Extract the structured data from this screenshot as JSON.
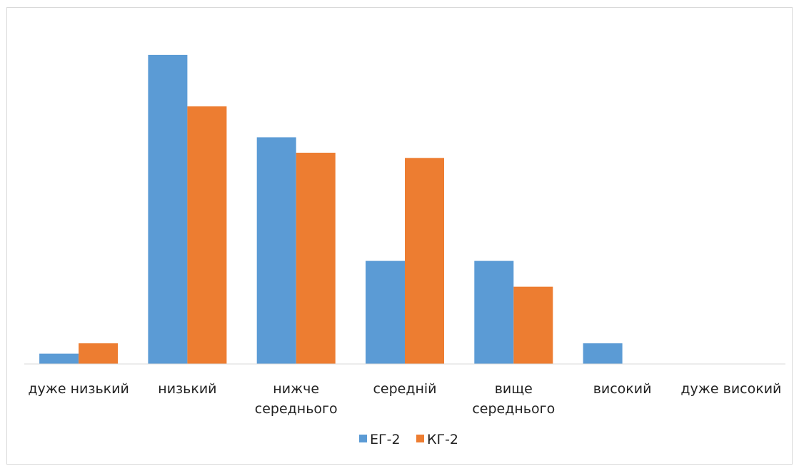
{
  "chart_data": {
    "type": "bar",
    "categories": [
      [
        "дуже низький"
      ],
      [
        "низький"
      ],
      [
        "нижче",
        "середнього"
      ],
      [
        "середній"
      ],
      [
        "вище",
        "середнього"
      ],
      [
        "високий"
      ],
      [
        "дуже високий"
      ]
    ],
    "series": [
      {
        "name": "ЕГ-2",
        "color": "#5b9bd5",
        "values": [
          1,
          30,
          22,
          10,
          10,
          2,
          0
        ]
      },
      {
        "name": "КГ-2",
        "color": "#ed7d31",
        "values": [
          2,
          25,
          20.5,
          20,
          7.5,
          0,
          0
        ]
      }
    ],
    "ylim": [
      0,
      32
    ],
    "legend_position": "bottom",
    "grid": false
  }
}
